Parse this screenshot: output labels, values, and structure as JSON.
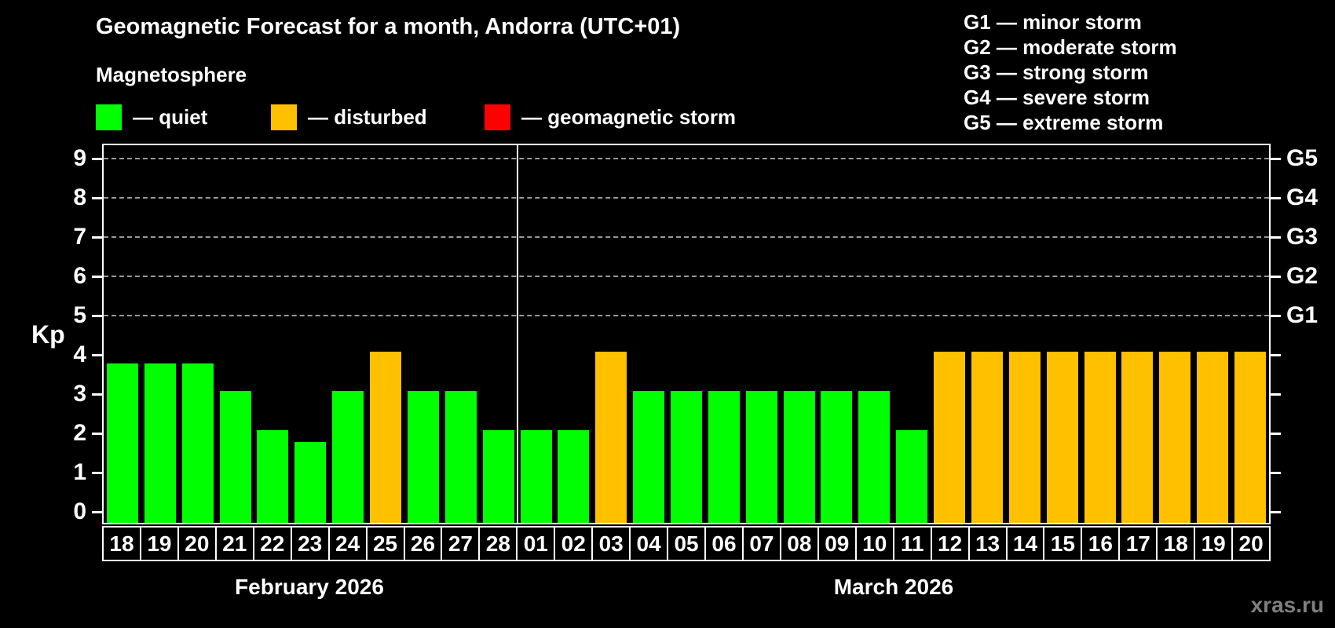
{
  "title": "Geomagnetic Forecast for a month, Andorra (UTC+01)",
  "subtitle": "Magnetosphere",
  "legend": {
    "items": [
      {
        "name": "quiet",
        "label": "— quiet",
        "color": "#00ff00"
      },
      {
        "name": "disturbed",
        "label": "— disturbed",
        "color": "#ffc000"
      },
      {
        "name": "storm",
        "label": "— geomagnetic storm",
        "color": "#ff0000"
      }
    ]
  },
  "g_scale": {
    "lines": [
      "G1 — minor storm",
      "G2 — moderate storm",
      "G3 — strong storm",
      "G4 — severe storm",
      "G5 — extreme storm"
    ]
  },
  "watermark": "xras.ru",
  "chart_data": {
    "type": "bar",
    "ylabel": "Kp",
    "ylim": [
      0,
      9
    ],
    "yticks": [
      0,
      1,
      2,
      3,
      4,
      5,
      6,
      7,
      8,
      9
    ],
    "gridlines_at": [
      5,
      6,
      7,
      8,
      9
    ],
    "right_axis_labels": [
      {
        "label": "G1",
        "kp": 5
      },
      {
        "label": "G2",
        "kp": 6
      },
      {
        "label": "G3",
        "kp": 7
      },
      {
        "label": "G4",
        "kp": 8
      },
      {
        "label": "G5",
        "kp": 9
      }
    ],
    "status_colors": {
      "quiet": "#00ff00",
      "disturbed": "#ffc000",
      "storm": "#ff0000"
    },
    "months": [
      {
        "label": "February 2026",
        "days": [
          {
            "day": "18",
            "kp": 3.7,
            "status": "quiet"
          },
          {
            "day": "19",
            "kp": 3.7,
            "status": "quiet"
          },
          {
            "day": "20",
            "kp": 3.7,
            "status": "quiet"
          },
          {
            "day": "21",
            "kp": 3.0,
            "status": "quiet"
          },
          {
            "day": "22",
            "kp": 2.0,
            "status": "quiet"
          },
          {
            "day": "23",
            "kp": 1.7,
            "status": "quiet"
          },
          {
            "day": "24",
            "kp": 3.0,
            "status": "quiet"
          },
          {
            "day": "25",
            "kp": 4.0,
            "status": "disturbed"
          },
          {
            "day": "26",
            "kp": 3.0,
            "status": "quiet"
          },
          {
            "day": "27",
            "kp": 3.0,
            "status": "quiet"
          },
          {
            "day": "28",
            "kp": 2.0,
            "status": "quiet"
          }
        ]
      },
      {
        "label": "March 2026",
        "days": [
          {
            "day": "01",
            "kp": 2.0,
            "status": "quiet"
          },
          {
            "day": "02",
            "kp": 2.0,
            "status": "quiet"
          },
          {
            "day": "03",
            "kp": 4.0,
            "status": "disturbed"
          },
          {
            "day": "04",
            "kp": 3.0,
            "status": "quiet"
          },
          {
            "day": "05",
            "kp": 3.0,
            "status": "quiet"
          },
          {
            "day": "06",
            "kp": 3.0,
            "status": "quiet"
          },
          {
            "day": "07",
            "kp": 3.0,
            "status": "quiet"
          },
          {
            "day": "08",
            "kp": 3.0,
            "status": "quiet"
          },
          {
            "day": "09",
            "kp": 3.0,
            "status": "quiet"
          },
          {
            "day": "10",
            "kp": 3.0,
            "status": "quiet"
          },
          {
            "day": "11",
            "kp": 2.0,
            "status": "quiet"
          },
          {
            "day": "12",
            "kp": 4.0,
            "status": "disturbed"
          },
          {
            "day": "13",
            "kp": 4.0,
            "status": "disturbed"
          },
          {
            "day": "14",
            "kp": 4.0,
            "status": "disturbed"
          },
          {
            "day": "15",
            "kp": 4.0,
            "status": "disturbed"
          },
          {
            "day": "16",
            "kp": 4.0,
            "status": "disturbed"
          },
          {
            "day": "17",
            "kp": 4.0,
            "status": "disturbed"
          },
          {
            "day": "18",
            "kp": 4.0,
            "status": "disturbed"
          },
          {
            "day": "19",
            "kp": 4.0,
            "status": "disturbed"
          },
          {
            "day": "20",
            "kp": 4.0,
            "status": "disturbed"
          }
        ]
      }
    ]
  }
}
